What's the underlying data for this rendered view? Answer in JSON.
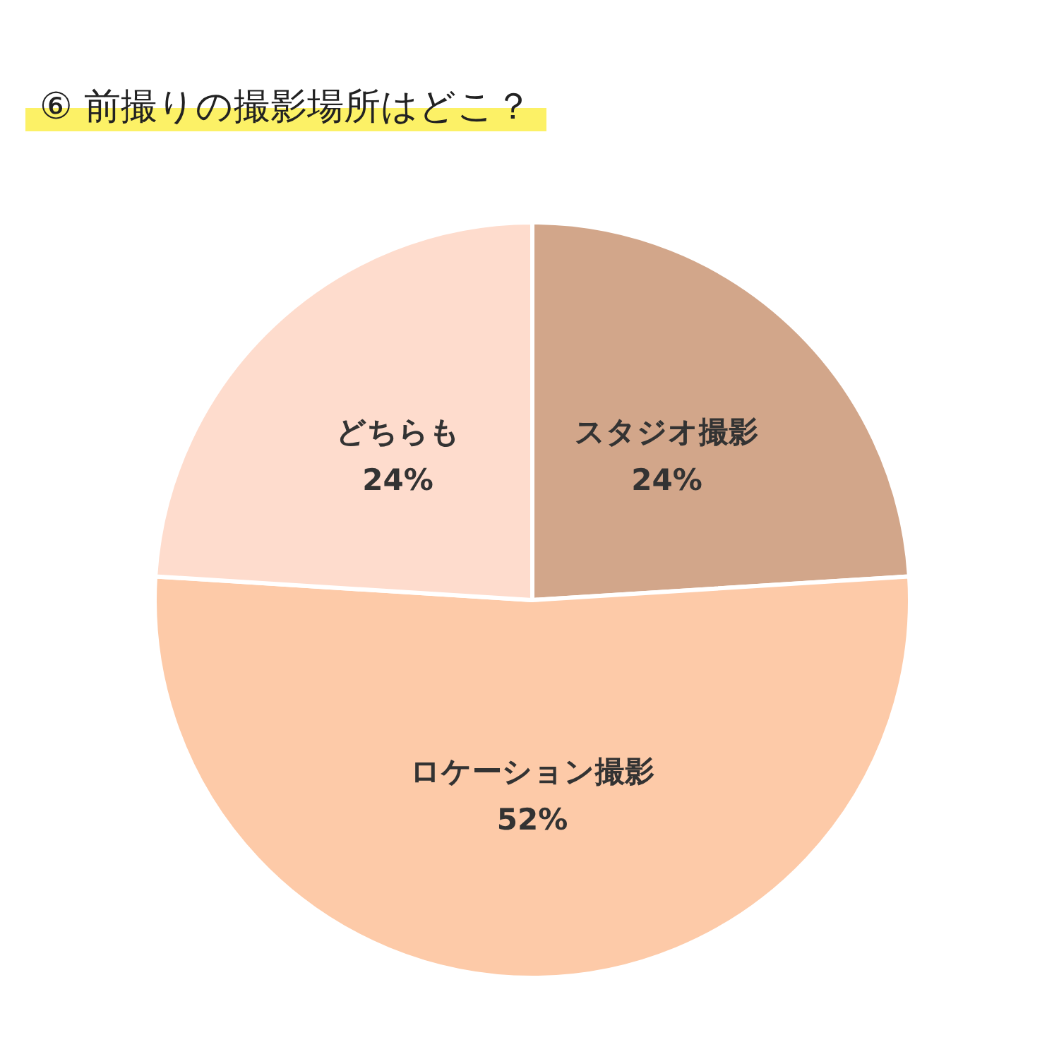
{
  "chart_data": {
    "type": "pie",
    "title": "⑥ 前撮りの撮影場所はどこ？",
    "categories": [
      "スタジオ撮影",
      "ロケーション撮影",
      "どちらも"
    ],
    "values": [
      24,
      52,
      24
    ],
    "colors": [
      "#d2a68a",
      "#fdcaa8",
      "#fedccd"
    ],
    "value_labels": [
      "24%",
      "52%",
      "24%"
    ]
  }
}
